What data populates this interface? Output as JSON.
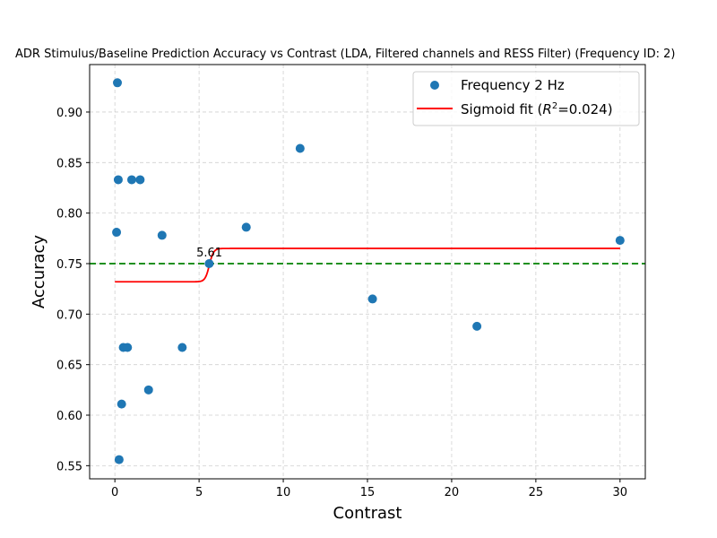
{
  "chart_data": {
    "type": "scatter",
    "title": "ADR Stimulus/Baseline Prediction Accuracy vs Contrast (LDA, Filtered channels and RESS Filter) (Frequency ID: 2)",
    "xlabel": "Contrast",
    "ylabel": "Accuracy",
    "xlim": [
      -1.5,
      31.5
    ],
    "ylim": [
      0.537,
      0.947
    ],
    "x_ticks": [
      0,
      5,
      10,
      15,
      20,
      25,
      30
    ],
    "y_ticks": [
      0.55,
      0.6,
      0.65,
      0.7,
      0.75,
      0.8,
      0.85,
      0.9
    ],
    "y_tick_labels": [
      "0.55",
      "0.60",
      "0.65",
      "0.70",
      "0.75",
      "0.80",
      "0.85",
      "0.90"
    ],
    "grid": true,
    "legend_position": "top-right",
    "series": [
      {
        "name": "Frequency 2 Hz",
        "kind": "scatter",
        "color": "#1f77b4",
        "points": [
          [
            0.15,
            0.929
          ],
          [
            0.1,
            0.781
          ],
          [
            0.2,
            0.833
          ],
          [
            0.25,
            0.556
          ],
          [
            0.4,
            0.611
          ],
          [
            0.5,
            0.667
          ],
          [
            0.75,
            0.667
          ],
          [
            1.0,
            0.833
          ],
          [
            1.5,
            0.833
          ],
          [
            2.0,
            0.625
          ],
          [
            2.8,
            0.778
          ],
          [
            4.0,
            0.667
          ],
          [
            5.6,
            0.75
          ],
          [
            7.8,
            0.786
          ],
          [
            11.0,
            0.864
          ],
          [
            15.3,
            0.715
          ],
          [
            21.5,
            0.688
          ],
          [
            30.0,
            0.773
          ]
        ]
      },
      {
        "name": "Sigmoid fit ($R^2$=0.024)",
        "legend_label_main": "Sigmoid fit (",
        "legend_label_sup_base": "R",
        "legend_label_sup": "2",
        "legend_label_tail": "=0.024)",
        "kind": "line",
        "color": "#ff0000",
        "sigmoid": {
          "low": 0.732,
          "high": 0.765,
          "midpoint": 5.61,
          "slope": 8,
          "x_start": 0,
          "x_end": 30
        }
      }
    ],
    "reference_line": {
      "y": 0.75,
      "color": "#008000",
      "style": "dashed"
    },
    "annotations": [
      {
        "text": "5.61",
        "x": 5.61,
        "y": 0.75
      }
    ]
  }
}
